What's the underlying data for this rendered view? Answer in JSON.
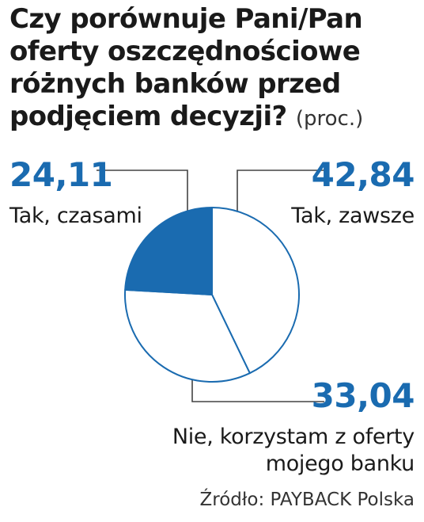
{
  "title": "Czy porównuje Pani/Pan oferty oszczędnościowe różnych banków przed podjęciem decyzji?",
  "unit": "(proc.)",
  "source": "Źródło: PAYBACK Polska",
  "colors": {
    "accent": "#1a6bb0",
    "empty": "#ffffff",
    "leader": "#444444",
    "text": "#1a1a1a"
  },
  "chart_data": {
    "type": "pie",
    "title": "Czy porównuje Pani/Pan oferty oszczędnościowe różnych banków przed podjęciem decyzji?",
    "unit": "proc.",
    "slices": [
      {
        "label": "Tak, zawsze",
        "value": 42.84,
        "value_text": "42,84",
        "filled": false
      },
      {
        "label": "Nie, korzystam z oferty mojego banku",
        "value": 33.04,
        "value_text": "33,04",
        "filled": false
      },
      {
        "label": "Tak, czasami",
        "value": 24.11,
        "value_text": "24,11",
        "filled": true
      }
    ]
  }
}
